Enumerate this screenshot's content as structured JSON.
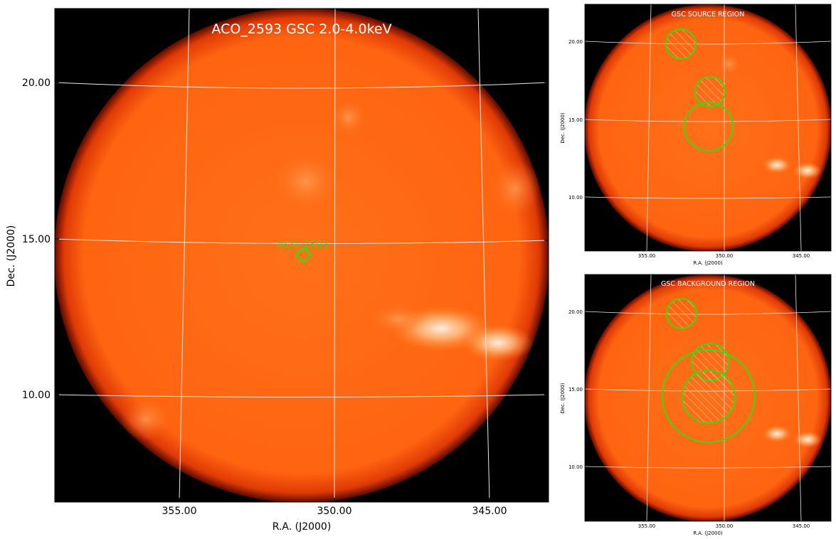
{
  "main_panel": {
    "title": "ACO_2593 GSC 2.0-4.0keV",
    "xlabel": "R.A. (J2000)",
    "ylabel": "Dec. (J2000)",
    "x_ticks": [
      "355.00",
      "350.00",
      "345.00"
    ],
    "y_ticks": [
      "20.00",
      "15.00",
      "10.00"
    ],
    "marker_label": "ACO_2593"
  },
  "source_panel": {
    "title": "GSC SOURCE REGION",
    "xlabel": "R.A. (J2000)",
    "ylabel": "Dec. (J2000)",
    "x_ticks": [
      "355.00",
      "350.00",
      "345.00"
    ],
    "y_ticks": [
      "20.00",
      "15.00",
      "10.00"
    ]
  },
  "background_panel": {
    "title": "GSC BACKGROUND REGION",
    "xlabel": "R.A. (J2000)",
    "ylabel": "Dec. (J2000)",
    "x_ticks": [
      "355.00",
      "350.00",
      "345.00"
    ],
    "y_ticks": [
      "20.00",
      "15.00",
      "10.00"
    ]
  },
  "colors": {
    "disk": "#ff6a10",
    "disk_edge": "#7a1400",
    "bright": "#fff2e0",
    "region": "#33dd11",
    "grid": "#e8e8e8",
    "sky_bg": "#000000"
  }
}
